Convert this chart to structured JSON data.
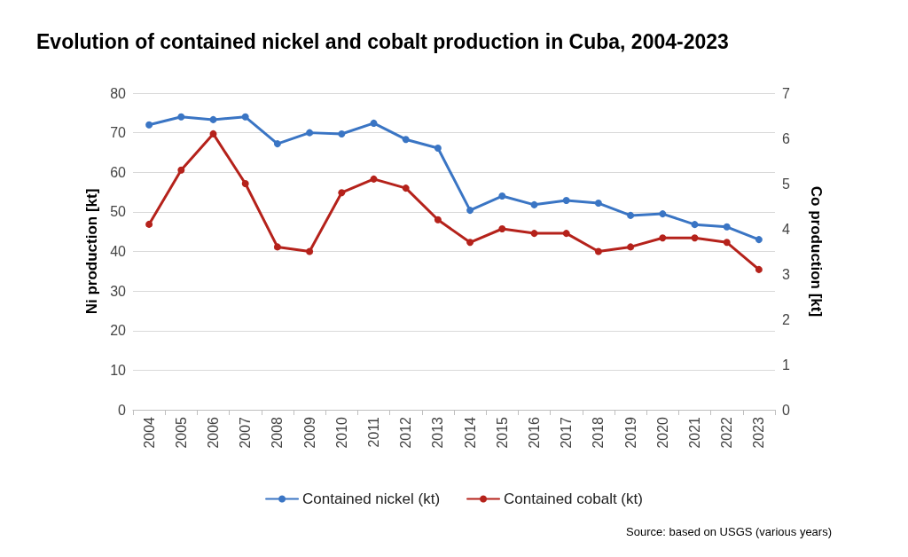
{
  "chart_data": {
    "type": "line",
    "title": "Evolution of contained nickel and cobalt production in Cuba, 2004-2023",
    "ylabel": "Ni production [kt]",
    "y2label": "Co production [kt]",
    "categories": [
      "2004",
      "2005",
      "2006",
      "2007",
      "2008",
      "2009",
      "2010",
      "2011",
      "2012",
      "2013",
      "2014",
      "2015",
      "2016",
      "2017",
      "2018",
      "2019",
      "2020",
      "2021",
      "2022",
      "2023"
    ],
    "series": [
      {
        "name": "Contained nickel (kt)",
        "color": "#3a75c4",
        "values": [
          72,
          74,
          73.3,
          74,
          67.2,
          70,
          69.7,
          72.4,
          68.3,
          66.1,
          50.4,
          54,
          51.8,
          52.9,
          52.2,
          49.1,
          49.5,
          46.8,
          46.2,
          43
        ]
      },
      {
        "name": "Contained cobalt (kt)",
        "color": "#b5221b",
        "axis": "y2",
        "values": [
          4.1,
          5.3,
          6.1,
          5.0,
          3.6,
          3.5,
          4.8,
          5.1,
          4.9,
          4.2,
          3.7,
          4.0,
          3.9,
          3.9,
          3.5,
          3.6,
          3.8,
          3.8,
          3.7,
          3.1
        ]
      }
    ],
    "ylim": [
      0,
      80
    ],
    "yticks": [
      0,
      10,
      20,
      30,
      40,
      50,
      60,
      70,
      80
    ],
    "y2lim": [
      0,
      7
    ],
    "y2ticks": [
      0,
      1,
      2,
      3,
      4,
      5,
      6,
      7
    ],
    "grid": "y",
    "legend": "bottom",
    "marker": "circle",
    "line_style": "solid",
    "annotations": [
      "Source: based on USGS (various years)"
    ]
  }
}
